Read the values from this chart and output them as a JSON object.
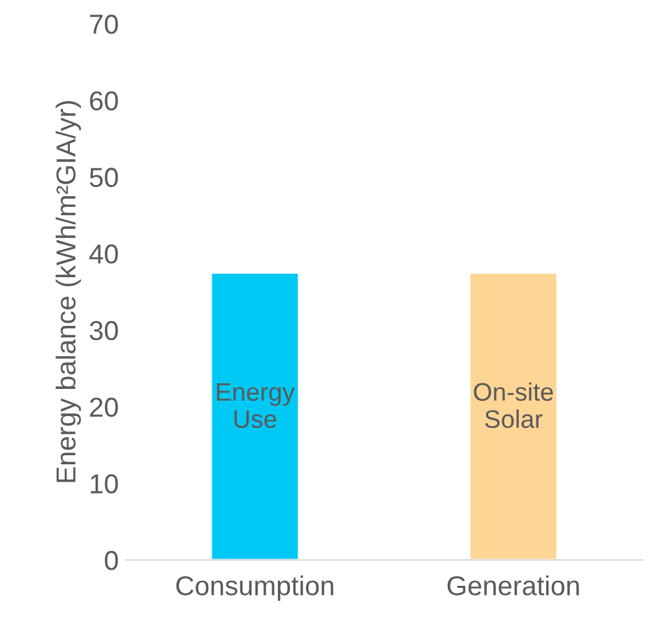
{
  "chart_data": {
    "type": "bar",
    "ylabel": "Energy balance (kWh/m²GIA/yr)",
    "categories": [
      "Consumption",
      "Generation"
    ],
    "series": [
      {
        "name": "Energy\nUse",
        "color": "#00c8f5",
        "values": [
          37.5,
          null
        ]
      },
      {
        "name": "On-site\nSolar",
        "color": "#ffd596",
        "values": [
          null,
          37.5
        ]
      }
    ],
    "ylim": [
      0,
      70
    ],
    "yticks": [
      0,
      10,
      20,
      30,
      40,
      50,
      60,
      70
    ],
    "grid": false,
    "legend": false
  }
}
